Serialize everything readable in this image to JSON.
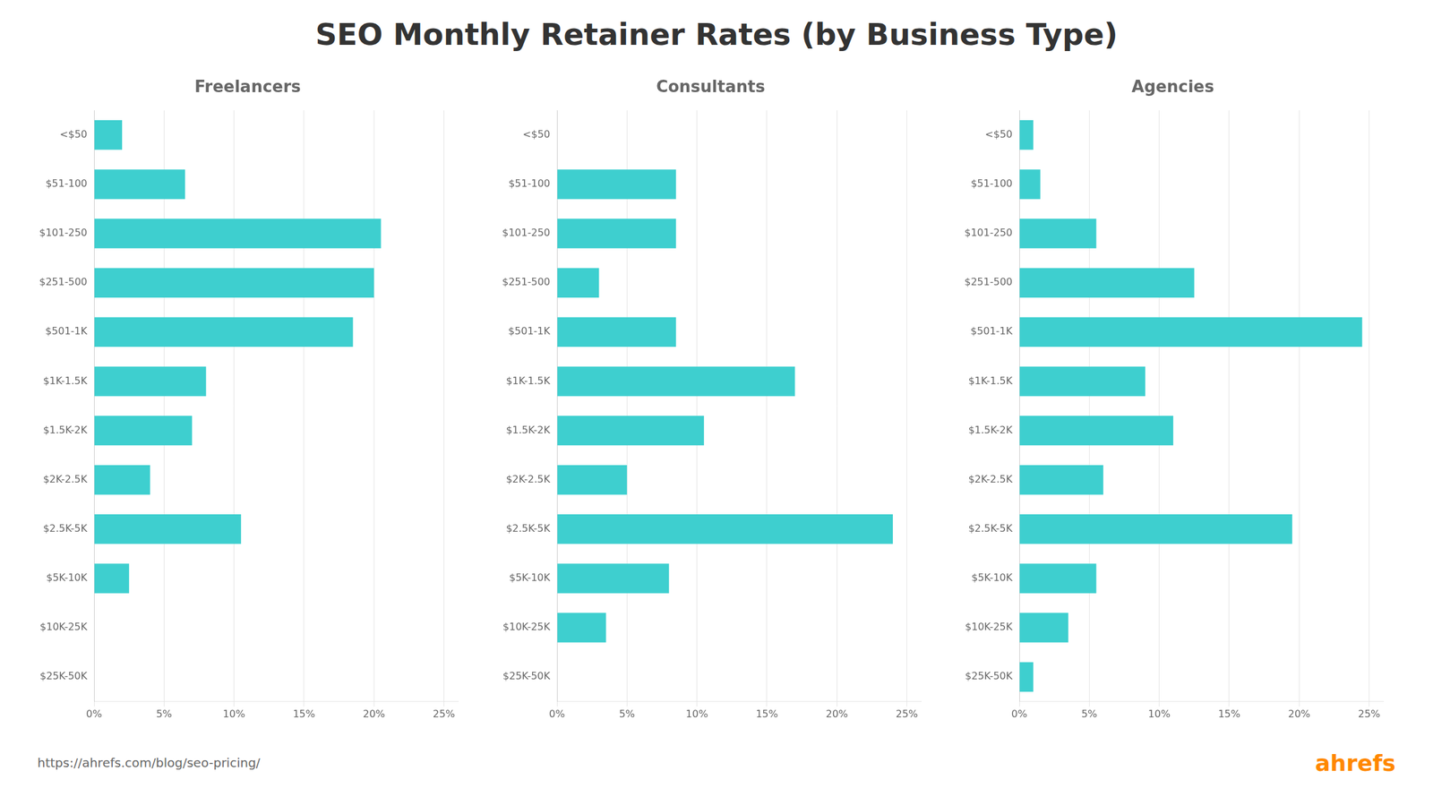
{
  "title": "SEO Monthly Retainer Rates (by Business Type)",
  "annotations": [
    "https://ahrefs.com/blog/seo-pricing/",
    "ahrefs"
  ],
  "chart_data": [
    {
      "type": "bar",
      "orientation": "horizontal",
      "title": "Freelancers",
      "categories": [
        "<$50",
        "$51-100",
        "$101-250",
        "$251-500",
        "$501-1K",
        "$1K-1.5K",
        "$1.5K-2K",
        "$2K-2.5K",
        "$2.5K-5K",
        "$5K-10K",
        "$10K-25K",
        "$25K-50K"
      ],
      "values": [
        2.0,
        6.5,
        20.5,
        20.0,
        18.5,
        8.0,
        7.0,
        4.0,
        10.5,
        2.5,
        0.0,
        0.0
      ],
      "color": "#3ecfcf",
      "xlim": [
        0,
        26
      ],
      "xticks": [
        {
          "value": 0,
          "label": "0%"
        },
        {
          "value": 5,
          "label": "5%"
        },
        {
          "value": 10,
          "label": "10%"
        },
        {
          "value": 15,
          "label": "15%"
        },
        {
          "value": 20,
          "label": "20%"
        },
        {
          "value": 25,
          "label": "25%"
        }
      ],
      "grid": true
    },
    {
      "type": "bar",
      "orientation": "horizontal",
      "title": "Consultants",
      "categories": [
        "<$50",
        "$51-100",
        "$101-250",
        "$251-500",
        "$501-1K",
        "$1K-1.5K",
        "$1.5K-2K",
        "$2K-2.5K",
        "$2.5K-5K",
        "$5K-10K",
        "$10K-25K",
        "$25K-50K"
      ],
      "values": [
        0.0,
        8.5,
        8.5,
        3.0,
        8.5,
        17.0,
        10.5,
        5.0,
        24.0,
        8.0,
        3.5,
        0.0
      ],
      "color": "#3ecfcf",
      "xlim": [
        0,
        26
      ],
      "xticks": [
        {
          "value": 0,
          "label": "0%"
        },
        {
          "value": 5,
          "label": "5%"
        },
        {
          "value": 10,
          "label": "10%"
        },
        {
          "value": 15,
          "label": "15%"
        },
        {
          "value": 20,
          "label": "20%"
        },
        {
          "value": 25,
          "label": "25%"
        }
      ],
      "grid": true
    },
    {
      "type": "bar",
      "orientation": "horizontal",
      "title": "Agencies",
      "categories": [
        "<$50",
        "$51-100",
        "$101-250",
        "$251-500",
        "$501-1K",
        "$1K-1.5K",
        "$1.5K-2K",
        "$2K-2.5K",
        "$2.5K-5K",
        "$5K-10K",
        "$10K-25K",
        "$25K-50K"
      ],
      "values": [
        1.0,
        1.5,
        5.5,
        12.5,
        24.5,
        9.0,
        11.0,
        6.0,
        19.5,
        5.5,
        3.5,
        1.0
      ],
      "color": "#3ecfcf",
      "xlim": [
        0,
        26
      ],
      "xticks": [
        {
          "value": 0,
          "label": "0%"
        },
        {
          "value": 5,
          "label": "5%"
        },
        {
          "value": 10,
          "label": "10%"
        },
        {
          "value": 15,
          "label": "15%"
        },
        {
          "value": 20,
          "label": "20%"
        },
        {
          "value": 25,
          "label": "25%"
        }
      ],
      "grid": true
    }
  ]
}
